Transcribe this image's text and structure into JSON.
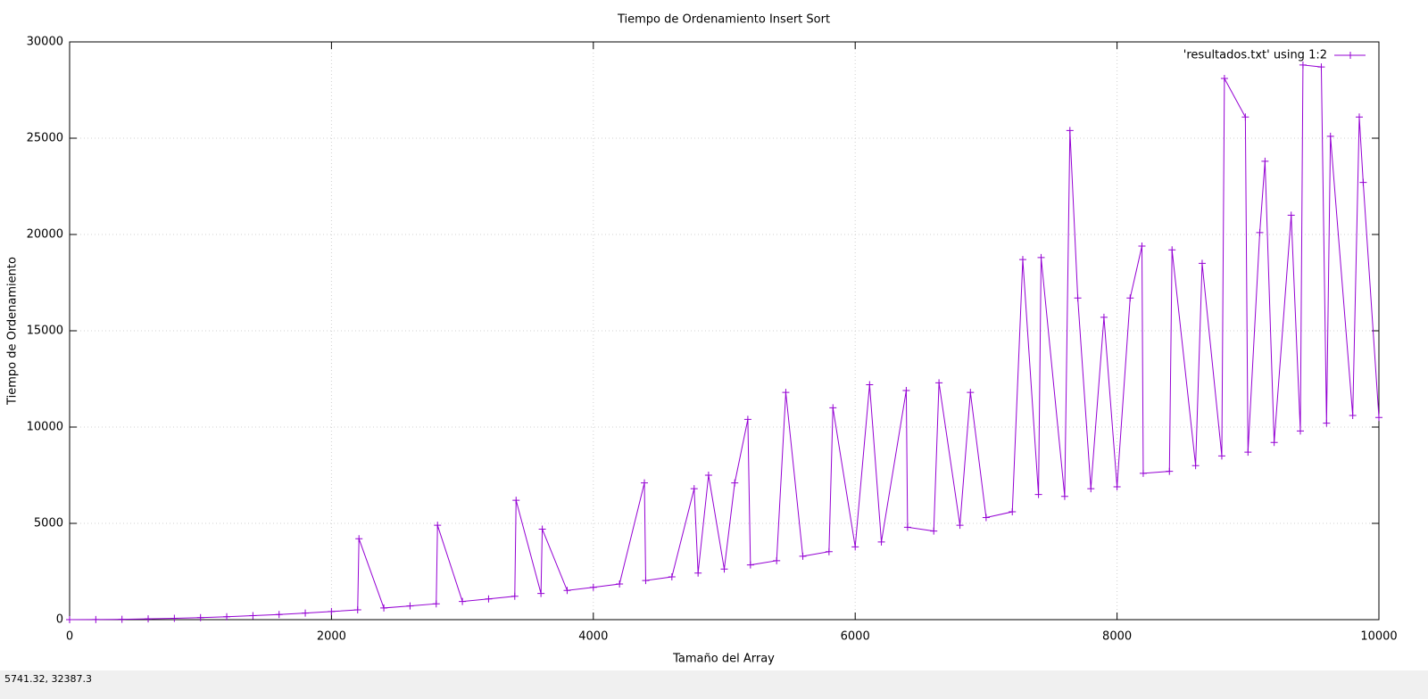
{
  "chart_data": {
    "type": "line",
    "title": "Tiempo de Ordenamiento Insert Sort",
    "x_label": "Tamaño del Array",
    "y_label": "Tiempo de Ordenamiento",
    "x": [
      0,
      200,
      400,
      600,
      800,
      1000,
      1200,
      1400,
      1600,
      1800,
      2000,
      2200,
      2210,
      2400,
      2600,
      2800,
      2810,
      3000,
      3200,
      3400,
      3410,
      3600,
      3610,
      3800,
      4000,
      4200,
      4390,
      4400,
      4600,
      4770,
      4800,
      4880,
      5000,
      5080,
      5180,
      5200,
      5400,
      5470,
      5600,
      5800,
      5830,
      6000,
      6110,
      6200,
      6390,
      6400,
      6600,
      6640,
      6800,
      6880,
      7000,
      7200,
      7280,
      7400,
      7420,
      7600,
      7640,
      7700,
      7800,
      7900,
      8000,
      8100,
      8190,
      8200,
      8400,
      8420,
      8600,
      8650,
      8800,
      8820,
      8980,
      9000,
      9090,
      9130,
      9200,
      9330,
      9400,
      9420,
      9560,
      9600,
      9630,
      9800,
      9850,
      9880,
      10000
    ],
    "series": [
      {
        "name": "'resultados.txt' using 1:2",
        "color": "#9400d3",
        "values": [
          0,
          4,
          17,
          38,
          67,
          105,
          151,
          206,
          269,
          340,
          420,
          508,
          4200,
          605,
          710,
          823,
          4900,
          945,
          1075,
          1214,
          6200,
          1360,
          4700,
          1516,
          1680,
          1852,
          7100,
          2033,
          2222,
          6800,
          2419,
          7500,
          2625,
          7100,
          10400,
          2839,
          3062,
          11800,
          3293,
          3532,
          11000,
          3780,
          12200,
          4036,
          11900,
          4800,
          4600,
          12300,
          4900,
          11800,
          5300,
          5600,
          18700,
          6500,
          18800,
          6400,
          25400,
          16700,
          6800,
          15700,
          6900,
          16700,
          19400,
          7600,
          7700,
          19200,
          8000,
          18500,
          8500,
          28100,
          26100,
          8700,
          20100,
          23800,
          9200,
          21000,
          9800,
          28800,
          28700,
          10200,
          25100,
          10600,
          26100,
          22700,
          10500
        ]
      }
    ],
    "xlim": [
      0,
      10000
    ],
    "ylim": [
      0,
      30000
    ],
    "xticks": [
      0,
      2000,
      4000,
      6000,
      8000,
      10000
    ],
    "yticks": [
      0,
      5000,
      10000,
      15000,
      20000,
      25000,
      30000
    ],
    "grid": true,
    "legend": "top-right"
  },
  "status_bar": "5741.32,  32387.3"
}
